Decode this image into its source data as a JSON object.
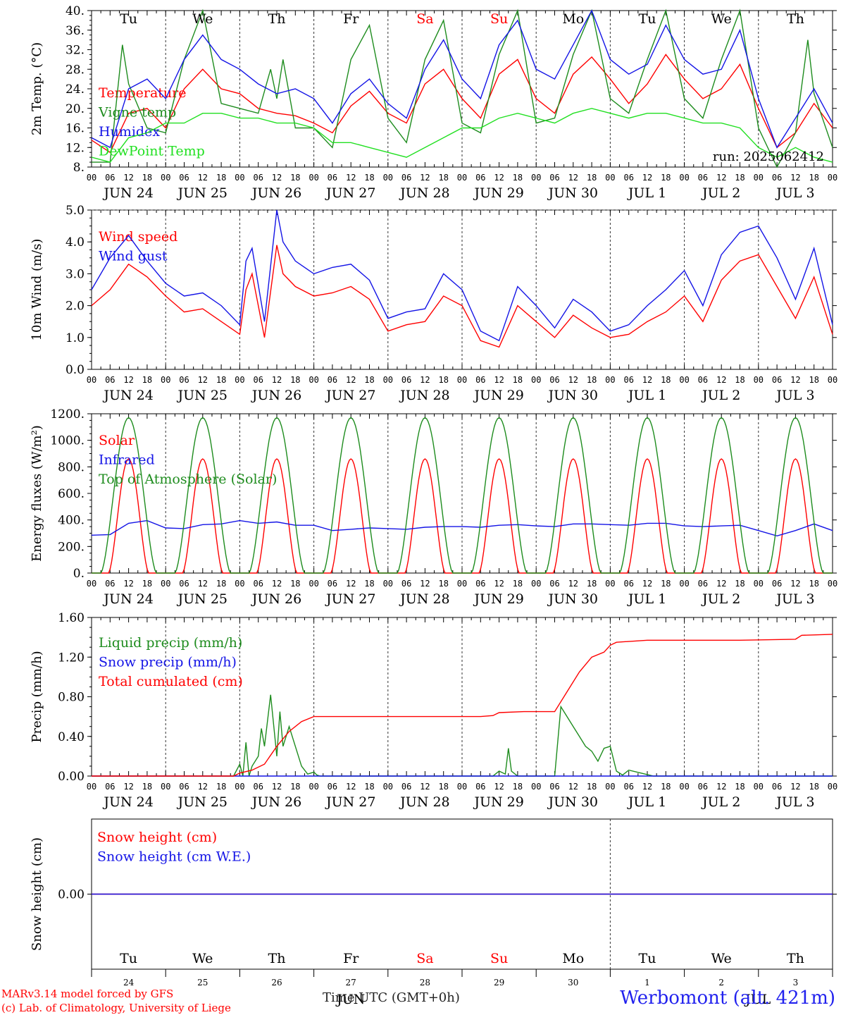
{
  "colors": {
    "red": "#ff0000",
    "darkgreen": "#1e8c1e",
    "blue": "#1414e6",
    "lightgreen": "#22e022",
    "axis": "#000000"
  },
  "days": [
    {
      "date": "JUN 24",
      "dow": "Tu",
      "weekend": false,
      "short": "24"
    },
    {
      "date": "JUN 25",
      "dow": "We",
      "weekend": false,
      "short": "25"
    },
    {
      "date": "JUN 26",
      "dow": "Th",
      "weekend": false,
      "short": "26"
    },
    {
      "date": "JUN 27",
      "dow": "Fr",
      "weekend": false,
      "short": "27"
    },
    {
      "date": "JUN 28",
      "dow": "Sa",
      "weekend": true,
      "short": "28"
    },
    {
      "date": "JUN 29",
      "dow": "Su",
      "weekend": true,
      "short": "29"
    },
    {
      "date": "JUN 30",
      "dow": "Mo",
      "weekend": false,
      "short": "30"
    },
    {
      "date": "JUL  1",
      "dow": "Tu",
      "weekend": false,
      "short": "1"
    },
    {
      "date": "JUL  2",
      "dow": "We",
      "weekend": false,
      "short": "2"
    },
    {
      "date": "JUL  3",
      "dow": "Th",
      "weekend": false,
      "short": "3"
    }
  ],
  "hour_labels": [
    "00",
    "06",
    "12",
    "18"
  ],
  "chart_data": [
    {
      "type": "line",
      "ylabel": "2m Temp. (°C)",
      "ylim": [
        8,
        40
      ],
      "yticks": [
        "8.",
        "12.",
        "16.",
        "20.",
        "24.",
        "28.",
        "32.",
        "36.",
        "40."
      ],
      "annotation": "run: 2025062412",
      "series": [
        {
          "name": "Temperature",
          "color": "red",
          "x_hours": [
            0,
            6,
            12,
            18,
            24,
            30,
            36,
            42,
            48,
            54,
            60,
            66,
            72,
            78,
            84,
            90,
            96,
            102,
            108,
            114,
            120,
            126,
            132,
            138,
            144,
            150,
            156,
            162,
            168,
            174,
            180,
            186,
            192,
            198,
            204,
            210,
            216,
            222,
            228,
            234,
            240
          ],
          "values": [
            13.5,
            11,
            19,
            20,
            16,
            24,
            28,
            24,
            23,
            20,
            19,
            18.5,
            17,
            15,
            20.5,
            23.5,
            19,
            17,
            25,
            28,
            22,
            18,
            27,
            30,
            22,
            19,
            27,
            30.5,
            26,
            21,
            25,
            31,
            26,
            22,
            24,
            29,
            20,
            12,
            15,
            21,
            16
          ]
        },
        {
          "name": "Vigne temp",
          "color": "darkgreen",
          "x_hours": [
            0,
            6,
            10,
            12,
            14,
            18,
            24,
            30,
            36,
            42,
            48,
            54,
            58,
            60,
            62,
            66,
            72,
            78,
            84,
            90,
            96,
            102,
            108,
            114,
            120,
            126,
            132,
            138,
            144,
            150,
            156,
            162,
            168,
            174,
            180,
            186,
            192,
            198,
            204,
            210,
            216,
            222,
            228,
            232,
            234,
            240
          ],
          "values": [
            9,
            9,
            33,
            25,
            22,
            16,
            15,
            30,
            40,
            21,
            20,
            19,
            28,
            22,
            30,
            16,
            16,
            12,
            30,
            37,
            18,
            13,
            30,
            38,
            17,
            15,
            31,
            40,
            17,
            18,
            31,
            40,
            22,
            19,
            30,
            40,
            22,
            18,
            30,
            40,
            16,
            8,
            15,
            34,
            23,
            12
          ]
        },
        {
          "name": "Humidex",
          "color": "blue",
          "x_hours": [
            0,
            6,
            12,
            18,
            24,
            30,
            36,
            42,
            48,
            54,
            60,
            66,
            72,
            78,
            84,
            90,
            96,
            102,
            108,
            114,
            120,
            126,
            132,
            138,
            144,
            150,
            156,
            162,
            168,
            174,
            180,
            186,
            192,
            198,
            204,
            210,
            216,
            222,
            228,
            234,
            240
          ],
          "values": [
            14,
            12,
            24,
            26,
            22,
            30,
            35,
            30,
            28,
            25,
            23,
            24,
            22,
            17,
            23,
            26,
            21,
            18,
            28,
            34,
            26,
            22,
            33,
            38,
            28,
            26,
            33,
            40,
            30,
            27,
            29,
            37,
            30,
            27,
            28,
            36,
            22,
            12,
            18,
            24,
            17
          ]
        },
        {
          "name": "DewPoint Temp",
          "color": "lightgreen",
          "x_hours": [
            0,
            6,
            12,
            18,
            24,
            30,
            36,
            42,
            48,
            54,
            60,
            66,
            72,
            78,
            84,
            90,
            96,
            102,
            108,
            114,
            120,
            126,
            132,
            138,
            144,
            150,
            156,
            162,
            168,
            174,
            180,
            186,
            192,
            198,
            204,
            210,
            216,
            222,
            228,
            234,
            240
          ],
          "values": [
            10,
            9,
            14,
            15,
            17,
            17,
            19,
            19,
            18,
            18,
            17,
            17,
            16,
            13,
            13,
            12,
            11,
            10,
            12,
            14,
            16,
            16,
            18,
            19,
            18,
            17,
            19,
            20,
            19,
            18,
            19,
            19,
            18,
            17,
            17,
            16,
            12,
            10,
            12,
            10,
            9
          ]
        }
      ]
    },
    {
      "type": "line",
      "ylabel": "10m Wind (m/s)",
      "ylim": [
        0,
        5
      ],
      "yticks": [
        "0.0",
        "1.0",
        "2.0",
        "3.0",
        "4.0",
        "5.0"
      ],
      "series": [
        {
          "name": "Wind speed",
          "color": "red",
          "x_hours": [
            0,
            6,
            12,
            18,
            24,
            30,
            36,
            42,
            48,
            50,
            52,
            56,
            60,
            62,
            66,
            72,
            78,
            84,
            90,
            96,
            102,
            108,
            114,
            120,
            126,
            132,
            138,
            144,
            150,
            156,
            162,
            168,
            174,
            180,
            186,
            192,
            198,
            204,
            210,
            216,
            222,
            228,
            234,
            240
          ],
          "values": [
            2.0,
            2.5,
            3.3,
            2.9,
            2.3,
            1.8,
            1.9,
            1.5,
            1.1,
            2.5,
            3.0,
            1.0,
            3.9,
            3.0,
            2.6,
            2.3,
            2.4,
            2.6,
            2.2,
            1.2,
            1.4,
            1.5,
            2.3,
            2.0,
            0.9,
            0.7,
            2.0,
            1.5,
            1.0,
            1.7,
            1.3,
            1.0,
            1.1,
            1.5,
            1.8,
            2.3,
            1.5,
            2.8,
            3.4,
            3.6,
            2.6,
            1.6,
            2.9,
            1.1
          ]
        },
        {
          "name": "Wind gust",
          "color": "blue",
          "x_hours": [
            0,
            6,
            12,
            18,
            24,
            30,
            36,
            42,
            48,
            50,
            52,
            56,
            60,
            62,
            66,
            72,
            78,
            84,
            90,
            96,
            102,
            108,
            114,
            120,
            126,
            132,
            138,
            144,
            150,
            156,
            162,
            168,
            174,
            180,
            186,
            192,
            198,
            204,
            210,
            216,
            222,
            228,
            234,
            240
          ],
          "values": [
            2.5,
            3.5,
            4.2,
            3.4,
            2.7,
            2.3,
            2.4,
            2.0,
            1.4,
            3.4,
            3.8,
            1.5,
            5.1,
            4.0,
            3.4,
            3.0,
            3.2,
            3.3,
            2.8,
            1.6,
            1.8,
            1.9,
            3.0,
            2.5,
            1.2,
            0.9,
            2.6,
            2.0,
            1.3,
            2.2,
            1.8,
            1.2,
            1.4,
            2.0,
            2.5,
            3.1,
            2.0,
            3.6,
            4.3,
            4.5,
            3.5,
            2.2,
            3.8,
            1.4
          ]
        }
      ]
    },
    {
      "type": "line",
      "ylabel": "Energy fluxes (W/m²)",
      "ylim": [
        0,
        1200
      ],
      "yticks": [
        "0.",
        "200.",
        "400.",
        "600.",
        "800.",
        "1000.",
        "1200."
      ],
      "series": [
        {
          "name": "Solar",
          "color": "red",
          "peak": 860
        },
        {
          "name": "Infrared",
          "color": "blue",
          "x_hours": [
            0,
            6,
            12,
            18,
            24,
            30,
            36,
            42,
            48,
            54,
            60,
            66,
            72,
            78,
            84,
            90,
            96,
            102,
            108,
            114,
            120,
            126,
            132,
            138,
            144,
            150,
            156,
            162,
            168,
            174,
            180,
            186,
            192,
            198,
            204,
            210,
            216,
            222,
            228,
            234,
            240
          ],
          "values": [
            285,
            290,
            375,
            395,
            340,
            335,
            365,
            370,
            395,
            375,
            385,
            360,
            360,
            320,
            330,
            340,
            335,
            330,
            345,
            350,
            350,
            345,
            360,
            365,
            355,
            350,
            370,
            370,
            365,
            360,
            375,
            375,
            355,
            350,
            355,
            360,
            320,
            280,
            320,
            370,
            320
          ]
        },
        {
          "name": "Top of Atmosphere (Solar)",
          "color": "darkgreen",
          "peak": 1170
        }
      ]
    },
    {
      "type": "line",
      "ylabel": "Precip (mm/h)",
      "ylim": [
        0,
        1.6
      ],
      "yticks": [
        "0.00",
        "0.40",
        "0.80",
        "1.20",
        "1.60"
      ],
      "series": [
        {
          "name": "Liquid precip (mm/h)",
          "color": "darkgreen",
          "x_hours": [
            0,
            46,
            48,
            49,
            50,
            51,
            52,
            54,
            55,
            56,
            58,
            60,
            61,
            62,
            64,
            66,
            68,
            70,
            72,
            73,
            74,
            130,
            132,
            134,
            135,
            136,
            138,
            150,
            152,
            154,
            156,
            158,
            160,
            162,
            164,
            166,
            168,
            170,
            172,
            174,
            178,
            182,
            186,
            240
          ],
          "values": [
            0,
            0,
            0.12,
            0,
            0.34,
            0,
            0.1,
            0.2,
            0.48,
            0.3,
            0.82,
            0.2,
            0.65,
            0.3,
            0.5,
            0.3,
            0.1,
            0.02,
            0.04,
            0.01,
            0,
            0,
            0.05,
            0.02,
            0.28,
            0.05,
            0,
            0,
            0.7,
            0.6,
            0.5,
            0.4,
            0.3,
            0.25,
            0.15,
            0.28,
            0.3,
            0.05,
            0.01,
            0.06,
            0.03,
            0,
            0,
            0
          ]
        },
        {
          "name": "Snow precip (mm/h)",
          "color": "blue",
          "x_hours": [
            0,
            240
          ],
          "values": [
            0,
            0
          ]
        },
        {
          "name": "Total cumulated (cm)",
          "color": "red",
          "x_hours": [
            0,
            46,
            48,
            52,
            56,
            60,
            64,
            68,
            72,
            126,
            130,
            132,
            140,
            150,
            154,
            158,
            162,
            166,
            168,
            170,
            180,
            210,
            228,
            230,
            240
          ],
          "values": [
            0,
            0,
            0.03,
            0.06,
            0.12,
            0.3,
            0.45,
            0.55,
            0.6,
            0.6,
            0.61,
            0.64,
            0.65,
            0.65,
            0.85,
            1.05,
            1.2,
            1.25,
            1.32,
            1.35,
            1.37,
            1.37,
            1.38,
            1.42,
            1.43
          ]
        }
      ]
    },
    {
      "type": "line",
      "ylabel": "Snow height (cm)",
      "ylim": [
        -1,
        1
      ],
      "yticks": [
        "0.00"
      ],
      "series": [
        {
          "name": "Snow height (cm)",
          "color": "red",
          "x_hours": [
            0,
            240
          ],
          "values": [
            0,
            0
          ]
        },
        {
          "name": "Snow height (cm W.E.)",
          "color": "blue",
          "x_hours": [
            0,
            240
          ],
          "values": [
            0,
            0
          ]
        }
      ]
    }
  ],
  "footer": {
    "credit_line1": "MARv3.14 model forced by GFS",
    "credit_line2": "(c) Lab. of Climatology, University of Liege",
    "xlabel": "Time UTC (GMT+0h)",
    "month_label": "JUN",
    "month_label2": "JUL",
    "station": "Werbomont (alt. 421m)"
  }
}
